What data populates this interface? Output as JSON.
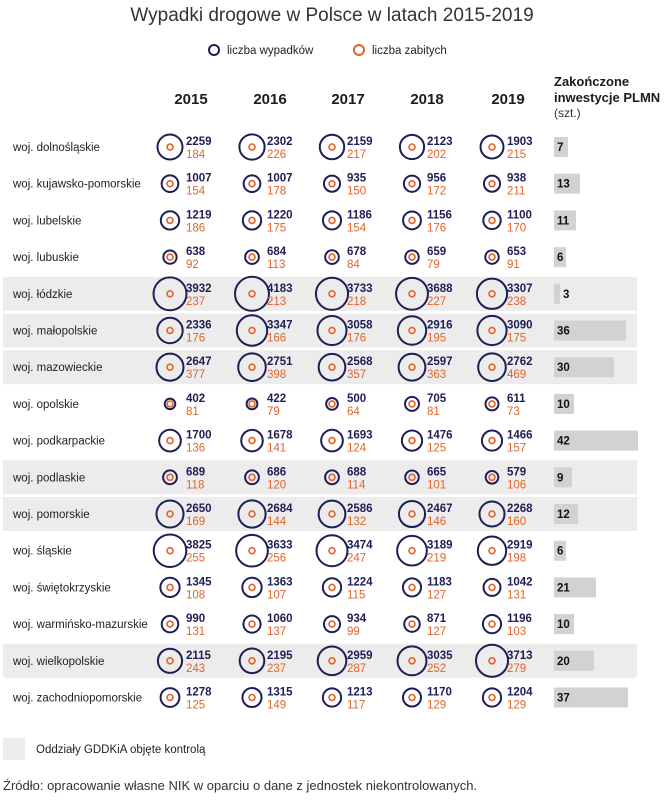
{
  "chart_data": {
    "type": "table",
    "title": "Wypadki drogowe w Polsce w latach 2015-2019",
    "legend": {
      "accidents": "liczba wypadków",
      "fatalities": "liczba zabitych",
      "audited": "Oddziały GDDKiA objęte kontrolą"
    },
    "years": [
      "2015",
      "2016",
      "2017",
      "2018",
      "2019"
    ],
    "investments_header": {
      "line1": "Zakończone",
      "line2": "inwestycje PLMN",
      "unit": "(szt.)"
    },
    "colors": {
      "accidents": "#1e1e55",
      "fatalities": "#e0642a",
      "audited_band": "#ececec",
      "investment_bar": "#d2d2d2"
    },
    "regions": [
      {
        "name": "woj. dolnośląskie",
        "audited": false,
        "accidents": [
          2259,
          2302,
          2159,
          2123,
          1903
        ],
        "fatalities": [
          184,
          226,
          217,
          202,
          215
        ],
        "investments": 7
      },
      {
        "name": "woj. kujawsko-pomorskie",
        "audited": false,
        "accidents": [
          1007,
          1007,
          935,
          956,
          938
        ],
        "fatalities": [
          154,
          178,
          150,
          172,
          211
        ],
        "investments": 13
      },
      {
        "name": "woj. lubelskie",
        "audited": false,
        "accidents": [
          1219,
          1220,
          1186,
          1156,
          1100
        ],
        "fatalities": [
          186,
          175,
          154,
          176,
          170
        ],
        "investments": 11
      },
      {
        "name": "woj. lubuskie",
        "audited": false,
        "accidents": [
          638,
          684,
          678,
          659,
          653
        ],
        "fatalities": [
          92,
          113,
          84,
          79,
          91
        ],
        "investments": 6
      },
      {
        "name": "woj. łódzkie",
        "audited": true,
        "accidents": [
          3932,
          4183,
          3733,
          3688,
          3307
        ],
        "fatalities": [
          237,
          213,
          218,
          227,
          238
        ],
        "investments": 3
      },
      {
        "name": "woj. małopolskie",
        "audited": true,
        "accidents": [
          2336,
          3347,
          3058,
          2916,
          3090
        ],
        "fatalities": [
          176,
          166,
          176,
          195,
          175
        ],
        "investments": 36
      },
      {
        "name": "woj. mazowieckie",
        "audited": true,
        "accidents": [
          2647,
          2751,
          2568,
          2597,
          2762
        ],
        "fatalities": [
          377,
          398,
          357,
          363,
          469
        ],
        "investments": 30
      },
      {
        "name": "woj. opolskie",
        "audited": false,
        "accidents": [
          402,
          422,
          500,
          705,
          611
        ],
        "fatalities": [
          81,
          79,
          64,
          81,
          73
        ],
        "investments": 10
      },
      {
        "name": "woj. podkarpackie",
        "audited": false,
        "accidents": [
          1700,
          1678,
          1693,
          1476,
          1466
        ],
        "fatalities": [
          136,
          141,
          124,
          125,
          157
        ],
        "investments": 42
      },
      {
        "name": "woj. podlaskie",
        "audited": true,
        "accidents": [
          689,
          686,
          688,
          665,
          579
        ],
        "fatalities": [
          118,
          120,
          114,
          101,
          106
        ],
        "investments": 9
      },
      {
        "name": "woj. pomorskie",
        "audited": true,
        "accidents": [
          2650,
          2684,
          2586,
          2467,
          2268
        ],
        "fatalities": [
          169,
          144,
          132,
          146,
          160
        ],
        "investments": 12
      },
      {
        "name": "woj. śląskie",
        "audited": false,
        "accidents": [
          3825,
          3633,
          3474,
          3189,
          2919
        ],
        "fatalities": [
          255,
          256,
          247,
          219,
          198
        ],
        "investments": 6
      },
      {
        "name": "woj. świętokrzyskie",
        "audited": false,
        "accidents": [
          1345,
          1363,
          1224,
          1183,
          1042
        ],
        "fatalities": [
          108,
          107,
          115,
          127,
          131
        ],
        "investments": 21
      },
      {
        "name": "woj. warmińsko-mazurskie",
        "audited": false,
        "accidents": [
          990,
          1060,
          934,
          871,
          1196
        ],
        "fatalities": [
          131,
          137,
          99,
          127,
          103
        ],
        "investments": 10
      },
      {
        "name": "woj. wielkopolskie",
        "audited": true,
        "accidents": [
          2115,
          2195,
          2959,
          3035,
          3713
        ],
        "fatalities": [
          243,
          237,
          287,
          252,
          279
        ],
        "investments": 20
      },
      {
        "name": "woj. zachodniopomorskie",
        "audited": false,
        "accidents": [
          1278,
          1315,
          1213,
          1170,
          1204
        ],
        "fatalities": [
          125,
          149,
          117,
          129,
          129
        ],
        "investments": 37
      }
    ]
  },
  "source": "Źródło: opracowanie własne NIK w oparciu o dane z jednostek niekontrolowanych."
}
